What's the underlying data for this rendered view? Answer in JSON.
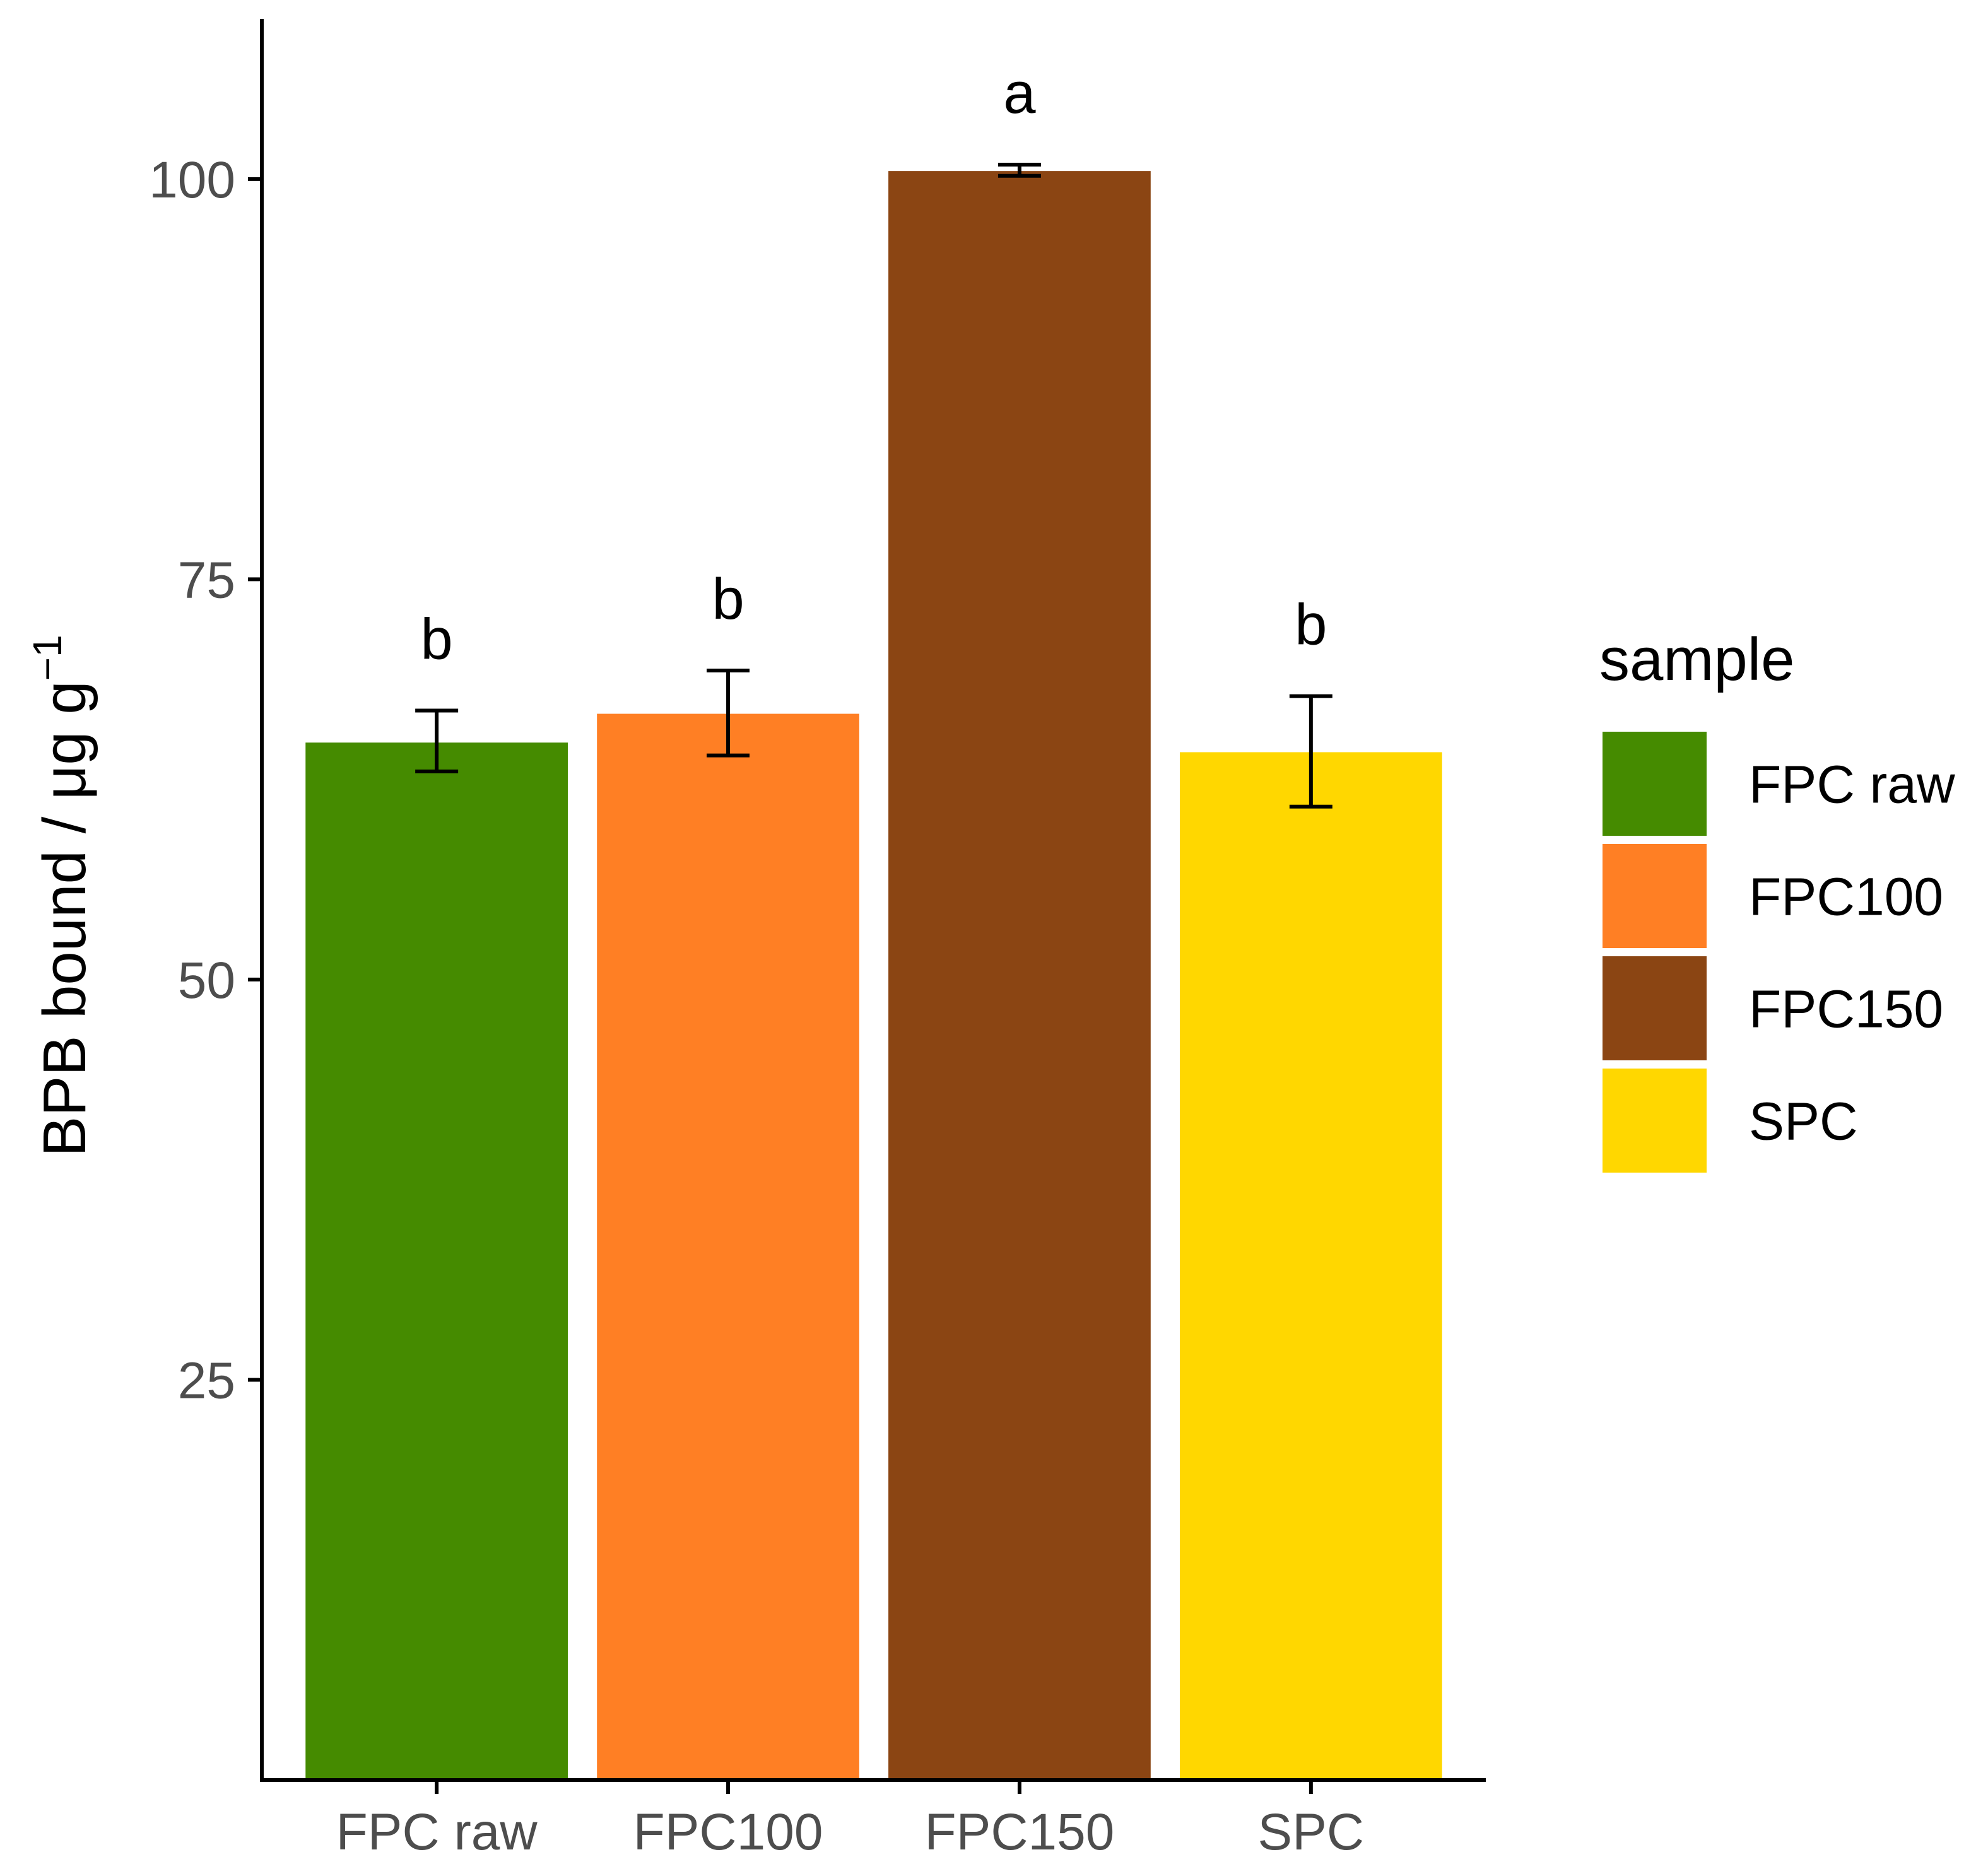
{
  "chart_data": {
    "type": "bar",
    "title": "",
    "xlabel": "",
    "ylabel": "BPB bound / μg g",
    "ylabel_superscript": "−1",
    "ylim": [
      0,
      110
    ],
    "y_ticks": [
      "25",
      "50",
      "75",
      "100"
    ],
    "categories": [
      "FPC raw",
      "FPC100",
      "FPC150",
      "SPC"
    ],
    "values": [
      64.8,
      66.6,
      100.5,
      64.2
    ],
    "error_low": [
      63.0,
      64.0,
      100.2,
      60.8
    ],
    "error_high": [
      66.8,
      69.3,
      100.9,
      67.7
    ],
    "significance": [
      "b",
      "b",
      "a",
      "b"
    ],
    "colors": [
      "#458b00",
      "#ff7f24",
      "#8b4513",
      "#ffd700"
    ],
    "grid": false,
    "legend": {
      "title": "sample",
      "position": "right",
      "entries": [
        "FPC raw",
        "FPC100",
        "FPC150",
        "SPC"
      ]
    }
  }
}
